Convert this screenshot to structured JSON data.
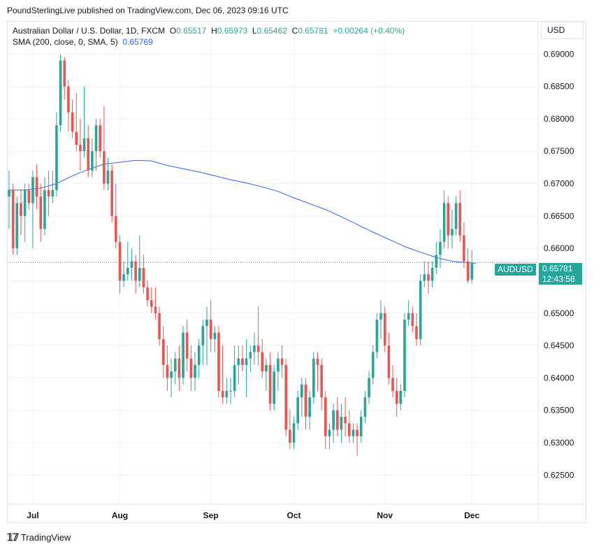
{
  "header": {
    "attribution": "PoundSterlingLive published on TradingView.com, Dec 06, 2023 09:16 UTC"
  },
  "legend": {
    "symbol_desc": "Australian Dollar / U.S. Dollar, 1D, FXCM",
    "o_label": "O",
    "o_value": "0.65517",
    "h_label": "H",
    "h_value": "0.65973",
    "l_label": "L",
    "l_value": "0.65462",
    "c_label": "C",
    "c_value": "0.65781",
    "change": "+0.00264 (+0.40%)",
    "sma_label": "SMA (200, close, 0, SMA, 5)",
    "sma_value": "0.65769"
  },
  "currency_button": "USD",
  "price_tag": {
    "symbol": "AUDUSD",
    "price": "0.65781",
    "countdown": "12:43:58"
  },
  "footer": {
    "brand": "TradingView"
  },
  "colors": {
    "up": "#26a69a",
    "down": "#ef5350",
    "sma": "#2962ff",
    "grid": "#f0f3fa"
  },
  "chart_data": {
    "type": "candlestick",
    "symbol": "AUDUSD",
    "ylim": [
      0.6205,
      0.695
    ],
    "y_ticks": [
      "0.69000",
      "0.68500",
      "0.68000",
      "0.67500",
      "0.67000",
      "0.66500",
      "0.66000",
      "0.65500",
      "0.65000",
      "0.64500",
      "0.64000",
      "0.63500",
      "0.63000",
      "0.62500"
    ],
    "x_ticks": [
      {
        "label": "Jul",
        "index": 6
      },
      {
        "label": "Aug",
        "index": 28
      },
      {
        "label": "Sep",
        "index": 51
      },
      {
        "label": "Oct",
        "index": 72
      },
      {
        "label": "Nov",
        "index": 95
      },
      {
        "label": "Dec",
        "index": 117
      }
    ],
    "last_price": 0.65781,
    "candles": [
      [
        0.668,
        0.672,
        0.663,
        0.669
      ],
      [
        0.669,
        0.67,
        0.659,
        0.66
      ],
      [
        0.66,
        0.668,
        0.659,
        0.667
      ],
      [
        0.667,
        0.669,
        0.662,
        0.665
      ],
      [
        0.665,
        0.67,
        0.661,
        0.669
      ],
      [
        0.669,
        0.67,
        0.666,
        0.667
      ],
      [
        0.667,
        0.672,
        0.66,
        0.671
      ],
      [
        0.671,
        0.673,
        0.666,
        0.668
      ],
      [
        0.668,
        0.67,
        0.661,
        0.663
      ],
      [
        0.663,
        0.671,
        0.662,
        0.669
      ],
      [
        0.669,
        0.672,
        0.665,
        0.668
      ],
      [
        0.668,
        0.672,
        0.667,
        0.669
      ],
      [
        0.669,
        0.681,
        0.668,
        0.679
      ],
      [
        0.679,
        0.69,
        0.678,
        0.689
      ],
      [
        0.689,
        0.6895,
        0.683,
        0.685
      ],
      [
        0.685,
        0.686,
        0.678,
        0.681
      ],
      [
        0.681,
        0.683,
        0.677,
        0.678
      ],
      [
        0.678,
        0.684,
        0.675,
        0.676
      ],
      [
        0.676,
        0.68,
        0.672,
        0.675
      ],
      [
        0.675,
        0.685,
        0.674,
        0.677
      ],
      [
        0.677,
        0.679,
        0.671,
        0.672
      ],
      [
        0.672,
        0.677,
        0.671,
        0.675
      ],
      [
        0.675,
        0.68,
        0.672,
        0.679
      ],
      [
        0.679,
        0.68,
        0.674,
        0.675
      ],
      [
        0.675,
        0.682,
        0.669,
        0.67
      ],
      [
        0.67,
        0.674,
        0.669,
        0.672
      ],
      [
        0.672,
        0.673,
        0.664,
        0.665
      ],
      [
        0.665,
        0.67,
        0.66,
        0.661
      ],
      [
        0.661,
        0.662,
        0.653,
        0.655
      ],
      [
        0.655,
        0.658,
        0.654,
        0.656
      ],
      [
        0.656,
        0.661,
        0.655,
        0.657
      ],
      [
        0.657,
        0.66,
        0.655,
        0.658
      ],
      [
        0.658,
        0.659,
        0.653,
        0.655
      ],
      [
        0.655,
        0.662,
        0.654,
        0.657
      ],
      [
        0.657,
        0.659,
        0.653,
        0.654
      ],
      [
        0.654,
        0.655,
        0.651,
        0.652
      ],
      [
        0.652,
        0.654,
        0.65,
        0.651
      ],
      [
        0.651,
        0.654,
        0.649,
        0.65
      ],
      [
        0.65,
        0.651,
        0.645,
        0.646
      ],
      [
        0.646,
        0.648,
        0.64,
        0.642
      ],
      [
        0.642,
        0.645,
        0.638,
        0.64
      ],
      [
        0.64,
        0.643,
        0.637,
        0.641
      ],
      [
        0.641,
        0.644,
        0.639,
        0.643
      ],
      [
        0.643,
        0.645,
        0.638,
        0.64
      ],
      [
        0.64,
        0.648,
        0.639,
        0.647
      ],
      [
        0.647,
        0.649,
        0.641,
        0.643
      ],
      [
        0.643,
        0.645,
        0.638,
        0.64
      ],
      [
        0.64,
        0.644,
        0.638,
        0.642
      ],
      [
        0.642,
        0.646,
        0.64,
        0.645
      ],
      [
        0.645,
        0.649,
        0.642,
        0.648
      ],
      [
        0.648,
        0.651,
        0.642,
        0.649
      ],
      [
        0.649,
        0.652,
        0.644,
        0.646
      ],
      [
        0.646,
        0.648,
        0.644,
        0.647
      ],
      [
        0.647,
        0.648,
        0.637,
        0.638
      ],
      [
        0.638,
        0.645,
        0.636,
        0.637
      ],
      [
        0.637,
        0.64,
        0.636,
        0.638
      ],
      [
        0.638,
        0.64,
        0.636,
        0.638
      ],
      [
        0.638,
        0.645,
        0.637,
        0.642
      ],
      [
        0.642,
        0.645,
        0.639,
        0.643
      ],
      [
        0.643,
        0.645,
        0.641,
        0.642
      ],
      [
        0.642,
        0.646,
        0.637,
        0.643
      ],
      [
        0.643,
        0.645,
        0.641,
        0.644
      ],
      [
        0.644,
        0.647,
        0.642,
        0.645
      ],
      [
        0.645,
        0.651,
        0.642,
        0.644
      ],
      [
        0.644,
        0.646,
        0.64,
        0.641
      ],
      [
        0.641,
        0.643,
        0.638,
        0.642
      ],
      [
        0.642,
        0.644,
        0.635,
        0.636
      ],
      [
        0.636,
        0.642,
        0.635,
        0.641
      ],
      [
        0.641,
        0.644,
        0.638,
        0.643
      ],
      [
        0.643,
        0.645,
        0.64,
        0.642
      ],
      [
        0.642,
        0.643,
        0.631,
        0.632
      ],
      [
        0.632,
        0.635,
        0.629,
        0.63
      ],
      [
        0.63,
        0.634,
        0.629,
        0.633
      ],
      [
        0.633,
        0.638,
        0.632,
        0.637
      ],
      [
        0.637,
        0.64,
        0.634,
        0.639
      ],
      [
        0.639,
        0.64,
        0.632,
        0.634
      ],
      [
        0.634,
        0.638,
        0.632,
        0.637
      ],
      [
        0.637,
        0.644,
        0.636,
        0.643
      ],
      [
        0.643,
        0.644,
        0.638,
        0.642
      ],
      [
        0.642,
        0.643,
        0.635,
        0.637
      ],
      [
        0.637,
        0.638,
        0.629,
        0.631
      ],
      [
        0.631,
        0.633,
        0.629,
        0.632
      ],
      [
        0.632,
        0.636,
        0.63,
        0.635
      ],
      [
        0.635,
        0.637,
        0.631,
        0.632
      ],
      [
        0.632,
        0.636,
        0.63,
        0.634
      ],
      [
        0.634,
        0.637,
        0.631,
        0.633
      ],
      [
        0.633,
        0.635,
        0.63,
        0.631
      ],
      [
        0.631,
        0.633,
        0.63,
        0.632
      ],
      [
        0.632,
        0.633,
        0.628,
        0.631
      ],
      [
        0.631,
        0.635,
        0.63,
        0.634
      ],
      [
        0.634,
        0.638,
        0.633,
        0.637
      ],
      [
        0.637,
        0.641,
        0.636,
        0.64
      ],
      [
        0.64,
        0.645,
        0.639,
        0.644
      ],
      [
        0.644,
        0.65,
        0.643,
        0.649
      ],
      [
        0.649,
        0.652,
        0.646,
        0.65
      ],
      [
        0.65,
        0.651,
        0.644,
        0.645
      ],
      [
        0.645,
        0.647,
        0.639,
        0.64
      ],
      [
        0.64,
        0.642,
        0.637,
        0.638
      ],
      [
        0.638,
        0.64,
        0.634,
        0.636
      ],
      [
        0.636,
        0.639,
        0.635,
        0.638
      ],
      [
        0.638,
        0.65,
        0.637,
        0.649
      ],
      [
        0.649,
        0.652,
        0.648,
        0.65
      ],
      [
        0.65,
        0.651,
        0.647,
        0.648
      ],
      [
        0.648,
        0.65,
        0.645,
        0.646
      ],
      [
        0.646,
        0.656,
        0.645,
        0.655
      ],
      [
        0.655,
        0.658,
        0.654,
        0.656
      ],
      [
        0.656,
        0.658,
        0.653,
        0.655
      ],
      [
        0.655,
        0.658,
        0.654,
        0.657
      ],
      [
        0.657,
        0.661,
        0.656,
        0.659
      ],
      [
        0.659,
        0.663,
        0.657,
        0.661
      ],
      [
        0.661,
        0.669,
        0.66,
        0.667
      ],
      [
        0.667,
        0.668,
        0.66,
        0.662
      ],
      [
        0.662,
        0.666,
        0.66,
        0.663
      ],
      [
        0.663,
        0.668,
        0.662,
        0.667
      ],
      [
        0.667,
        0.669,
        0.661,
        0.662
      ],
      [
        0.662,
        0.664,
        0.657,
        0.658
      ],
      [
        0.658,
        0.66,
        0.6546,
        0.655
      ],
      [
        0.6552,
        0.6597,
        0.6546,
        0.6578
      ]
    ],
    "sma": [
      [
        0,
        0.669
      ],
      [
        4,
        0.669
      ],
      [
        8,
        0.6693
      ],
      [
        12,
        0.67
      ],
      [
        16,
        0.6712
      ],
      [
        20,
        0.6722
      ],
      [
        24,
        0.673
      ],
      [
        28,
        0.6733
      ],
      [
        32,
        0.6736
      ],
      [
        36,
        0.6735
      ],
      [
        40,
        0.6728
      ],
      [
        44,
        0.6723
      ],
      [
        48,
        0.6718
      ],
      [
        52,
        0.6712
      ],
      [
        56,
        0.6706
      ],
      [
        60,
        0.6701
      ],
      [
        64,
        0.6695
      ],
      [
        68,
        0.6688
      ],
      [
        72,
        0.6678
      ],
      [
        76,
        0.6669
      ],
      [
        80,
        0.666
      ],
      [
        84,
        0.6649
      ],
      [
        88,
        0.6637
      ],
      [
        92,
        0.6625
      ],
      [
        96,
        0.6614
      ],
      [
        100,
        0.6603
      ],
      [
        104,
        0.6594
      ],
      [
        108,
        0.6586
      ],
      [
        112,
        0.658
      ],
      [
        116,
        0.6578
      ],
      [
        118,
        0.6577
      ]
    ]
  }
}
